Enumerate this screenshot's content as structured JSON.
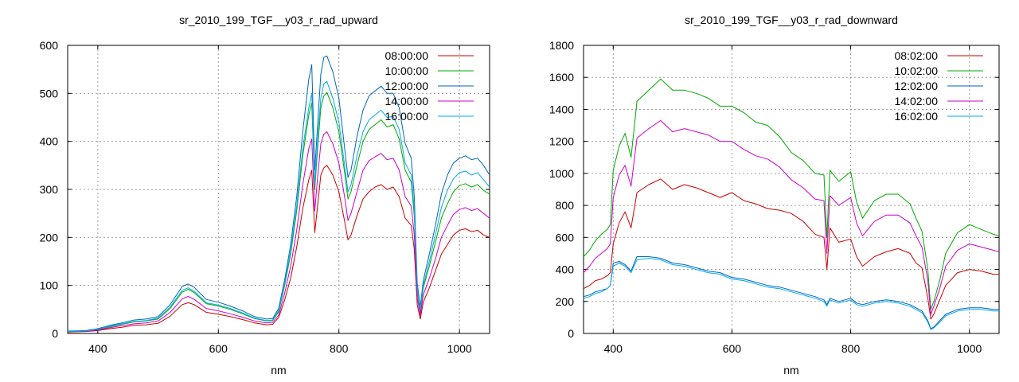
{
  "chart_data": [
    {
      "type": "line",
      "title": "sr_2010_199_TGF__y03_r_rad_upward",
      "xlabel": "nm",
      "ylabel": "",
      "xlim": [
        350,
        1050
      ],
      "ylim": [
        0,
        600
      ],
      "xticks": [
        400,
        600,
        800,
        1000
      ],
      "yticks": [
        0,
        100,
        200,
        300,
        400,
        500,
        600
      ],
      "grid": true,
      "legend_position": "top-right",
      "x": [
        350,
        380,
        400,
        420,
        440,
        460,
        480,
        500,
        520,
        540,
        550,
        560,
        580,
        600,
        620,
        640,
        660,
        680,
        690,
        700,
        710,
        720,
        730,
        740,
        750,
        755,
        760,
        765,
        770,
        775,
        780,
        790,
        800,
        810,
        815,
        820,
        830,
        840,
        850,
        860,
        870,
        880,
        890,
        900,
        910,
        920,
        925,
        930,
        935,
        940,
        950,
        960,
        970,
        980,
        990,
        1000,
        1010,
        1020,
        1030,
        1040,
        1050
      ],
      "series": [
        {
          "name": "08:00:00",
          "color": "#cc0000",
          "values": [
            3,
            4,
            6,
            10,
            13,
            17,
            18,
            21,
            36,
            60,
            64,
            60,
            44,
            40,
            35,
            29,
            22,
            18,
            19,
            33,
            70,
            115,
            180,
            260,
            320,
            340,
            210,
            270,
            330,
            345,
            350,
            330,
            295,
            230,
            195,
            205,
            245,
            280,
            295,
            305,
            310,
            300,
            305,
            285,
            240,
            225,
            175,
            60,
            30,
            65,
            95,
            130,
            165,
            185,
            205,
            215,
            218,
            212,
            215,
            205,
            200
          ]
        },
        {
          "name": "10:00:00",
          "color": "#00aa00",
          "values": [
            4,
            5,
            8,
            14,
            19,
            24,
            26,
            30,
            52,
            86,
            92,
            85,
            62,
            57,
            50,
            41,
            31,
            26,
            27,
            45,
            100,
            165,
            255,
            370,
            455,
            480,
            300,
            390,
            470,
            495,
            502,
            470,
            420,
            330,
            280,
            295,
            350,
            400,
            425,
            435,
            445,
            430,
            435,
            405,
            340,
            315,
            245,
            90,
            45,
            95,
            140,
            190,
            240,
            270,
            295,
            308,
            312,
            305,
            310,
            298,
            290
          ]
        },
        {
          "name": "12:00:00",
          "color": "#0066bb",
          "values": [
            5,
            6,
            10,
            17,
            22,
            28,
            30,
            35,
            60,
            98,
            103,
            96,
            71,
            65,
            57,
            47,
            35,
            30,
            31,
            52,
            112,
            185,
            285,
            420,
            530,
            560,
            340,
            440,
            540,
            575,
            578,
            545,
            490,
            380,
            325,
            340,
            410,
            465,
            495,
            505,
            515,
            500,
            500,
            470,
            395,
            365,
            285,
            105,
            55,
            110,
            165,
            225,
            290,
            330,
            355,
            365,
            370,
            362,
            365,
            350,
            330
          ]
        },
        {
          "name": "14:00:00",
          "color": "#cc00cc",
          "values": [
            4,
            5,
            7,
            12,
            16,
            20,
            22,
            26,
            44,
            72,
            77,
            71,
            52,
            47,
            41,
            34,
            26,
            22,
            23,
            38,
            84,
            140,
            215,
            310,
            385,
            405,
            255,
            330,
            395,
            415,
            420,
            395,
            355,
            280,
            235,
            250,
            295,
            340,
            360,
            368,
            375,
            362,
            365,
            340,
            285,
            265,
            205,
            75,
            38,
            80,
            115,
            155,
            200,
            225,
            248,
            258,
            262,
            256,
            260,
            250,
            240
          ]
        },
        {
          "name": "16:00:00",
          "color": "#00aaee",
          "values": [
            4,
            5,
            9,
            15,
            20,
            25,
            27,
            32,
            55,
            90,
            95,
            88,
            64,
            59,
            52,
            43,
            32,
            27,
            28,
            48,
            104,
            172,
            265,
            385,
            470,
            500,
            310,
            405,
            490,
            520,
            525,
            490,
            440,
            345,
            295,
            310,
            370,
            420,
            445,
            455,
            465,
            450,
            452,
            425,
            355,
            330,
            258,
            95,
            48,
            100,
            150,
            205,
            262,
            298,
            322,
            335,
            338,
            330,
            335,
            320,
            305
          ]
        }
      ]
    },
    {
      "type": "line",
      "title": "sr_2010_199_TGF__y03_r_rad_downward",
      "xlabel": "nm",
      "ylabel": "",
      "xlim": [
        350,
        1050
      ],
      "ylim": [
        0,
        1800
      ],
      "xticks": [
        400,
        600,
        800,
        1000
      ],
      "yticks": [
        0,
        200,
        400,
        600,
        800,
        1000,
        1200,
        1400,
        1600,
        1800
      ],
      "grid": true,
      "legend_position": "top-right",
      "x": [
        350,
        360,
        370,
        380,
        390,
        395,
        400,
        410,
        420,
        430,
        440,
        460,
        480,
        500,
        520,
        540,
        560,
        580,
        600,
        620,
        640,
        660,
        680,
        700,
        720,
        740,
        755,
        760,
        765,
        780,
        800,
        810,
        820,
        840,
        860,
        880,
        900,
        910,
        920,
        930,
        935,
        940,
        950,
        960,
        980,
        1000,
        1020,
        1040,
        1050
      ],
      "series": [
        {
          "name": "08:02:00",
          "color": "#cc0000",
          "values": [
            280,
            300,
            330,
            340,
            360,
            380,
            560,
            690,
            760,
            660,
            880,
            930,
            965,
            900,
            930,
            910,
            880,
            850,
            880,
            830,
            810,
            780,
            770,
            750,
            700,
            620,
            600,
            400,
            660,
            570,
            590,
            480,
            420,
            480,
            510,
            530,
            500,
            440,
            410,
            220,
            90,
            120,
            210,
            300,
            380,
            400,
            390,
            370,
            370
          ]
        },
        {
          "name": "10:02:00",
          "color": "#00aa00",
          "values": [
            480,
            520,
            580,
            620,
            650,
            680,
            1020,
            1170,
            1250,
            1100,
            1450,
            1520,
            1590,
            1520,
            1520,
            1500,
            1470,
            1420,
            1420,
            1380,
            1320,
            1300,
            1230,
            1130,
            1080,
            1000,
            990,
            600,
            1020,
            950,
            1010,
            820,
            720,
            830,
            870,
            870,
            810,
            720,
            640,
            400,
            150,
            200,
            330,
            500,
            630,
            680,
            650,
            620,
            610
          ]
        },
        {
          "name": "12:02:00",
          "color": "#0066bb",
          "values": [
            230,
            240,
            260,
            270,
            280,
            300,
            440,
            450,
            430,
            390,
            480,
            480,
            470,
            440,
            430,
            410,
            390,
            380,
            350,
            340,
            320,
            300,
            290,
            270,
            250,
            230,
            210,
            180,
            220,
            200,
            220,
            190,
            180,
            200,
            210,
            200,
            180,
            160,
            140,
            80,
            30,
            40,
            80,
            120,
            150,
            160,
            160,
            150,
            150
          ]
        },
        {
          "name": "14:02:00",
          "color": "#cc00cc",
          "values": [
            380,
            420,
            470,
            500,
            530,
            560,
            850,
            990,
            1050,
            920,
            1220,
            1280,
            1330,
            1260,
            1280,
            1260,
            1240,
            1200,
            1200,
            1150,
            1110,
            1090,
            1040,
            960,
            910,
            840,
            830,
            500,
            860,
            800,
            850,
            690,
            610,
            700,
            740,
            740,
            690,
            610,
            540,
            330,
            120,
            170,
            280,
            420,
            520,
            560,
            540,
            520,
            510
          ]
        },
        {
          "name": "16:02:00",
          "color": "#00aaee",
          "values": [
            220,
            230,
            250,
            260,
            280,
            300,
            420,
            440,
            420,
            380,
            460,
            470,
            460,
            430,
            420,
            400,
            380,
            370,
            340,
            330,
            310,
            290,
            280,
            260,
            240,
            220,
            200,
            170,
            210,
            190,
            210,
            180,
            170,
            190,
            200,
            190,
            170,
            150,
            130,
            70,
            25,
            35,
            70,
            110,
            140,
            150,
            150,
            140,
            140
          ]
        }
      ]
    }
  ]
}
